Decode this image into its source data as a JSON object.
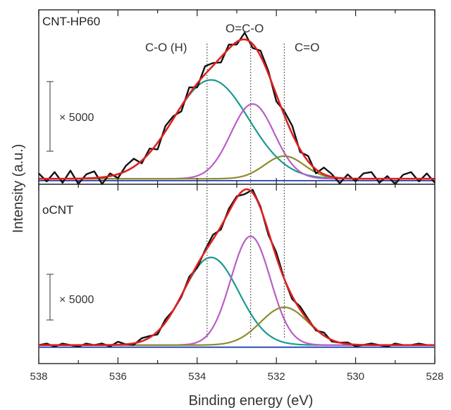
{
  "chart_data": {
    "type": "line",
    "xlabel": "Binding energy (eV)",
    "ylabel": "Intensity (a.u.)",
    "xlim": [
      538,
      528
    ],
    "x_reversed": true,
    "xticks": [
      "538",
      "536",
      "534",
      "532",
      "530",
      "528"
    ],
    "peak_positions": [
      {
        "name": "C-O (H)",
        "x": 533.75
      },
      {
        "name": "O=C-O",
        "x": 532.65
      },
      {
        "name": "C=O",
        "x": 531.8
      }
    ],
    "panels": [
      {
        "label": "CNT-HP60",
        "scale_label": "× 5000",
        "ylim": [
          0,
          1.05
        ],
        "baseline_value": 0.02,
        "peaks": [
          {
            "name": "C-O (H)",
            "color": "#1a9a90",
            "center": 533.65,
            "height": 0.74,
            "width": 0.95
          },
          {
            "name": "O=C-O",
            "color": "#bb5cc8",
            "center": 532.6,
            "height": 0.56,
            "width": 0.55
          },
          {
            "name": "C=O",
            "color": "#8c8c2c",
            "center": 531.8,
            "height": 0.17,
            "width": 0.5
          }
        ],
        "raw_noise": [
          0.04,
          -0.02,
          0.05,
          -0.03,
          0.06,
          -0.04,
          0.03,
          0.05,
          -0.05,
          0.02,
          -0.03,
          0.04,
          0.06,
          -0.02,
          0.03,
          -0.05,
          0.04,
          0.02,
          -0.04,
          0.05,
          -0.03,
          0.06,
          0.02,
          -0.04,
          0.03,
          -0.02,
          0.05,
          -0.03,
          0.04,
          0.02,
          -0.05,
          0.03,
          0.06,
          -0.02,
          0.04,
          -0.03,
          0.05,
          0.02,
          -0.04,
          0.03,
          -0.02,
          0.04,
          0.05,
          -0.03,
          0.02,
          -0.04,
          0.03,
          0.05,
          -0.02,
          0.04,
          -0.03
        ]
      },
      {
        "label": "oCNT",
        "scale_label": "× 5000",
        "ylim": [
          0,
          1.05
        ],
        "baseline_value": 0.02,
        "peaks": [
          {
            "name": "C-O (H)",
            "color": "#1a9a90",
            "center": 533.65,
            "height": 0.58,
            "width": 0.7
          },
          {
            "name": "O=C-O",
            "color": "#bb5cc8",
            "center": 532.65,
            "height": 0.72,
            "width": 0.5
          },
          {
            "name": "C=O",
            "color": "#8c8c2c",
            "center": 531.8,
            "height": 0.25,
            "width": 0.6
          }
        ],
        "raw_noise": [
          0.0,
          0.01,
          -0.01,
          0.01,
          0.0,
          -0.01,
          0.01,
          0.0,
          0.01,
          -0.01,
          0.02,
          0.0,
          -0.01,
          0.02,
          0.01,
          -0.02,
          0.02,
          0.0,
          -0.01,
          0.02,
          -0.02,
          0.01,
          0.03,
          -0.02,
          0.02,
          0.01,
          -0.03,
          0.02,
          0.01,
          -0.02,
          0.03,
          0.0,
          -0.02,
          0.02,
          0.01,
          -0.01,
          0.02,
          -0.01,
          0.0,
          0.01,
          -0.01,
          0.0,
          0.01,
          0.0,
          -0.01,
          0.01,
          0.0,
          0.0,
          0.01,
          0.0,
          0.0
        ]
      }
    ],
    "series_colors": {
      "raw": "#111111",
      "envelope": "#e02020",
      "background": "#2040b0",
      "guide": "#666666"
    }
  }
}
